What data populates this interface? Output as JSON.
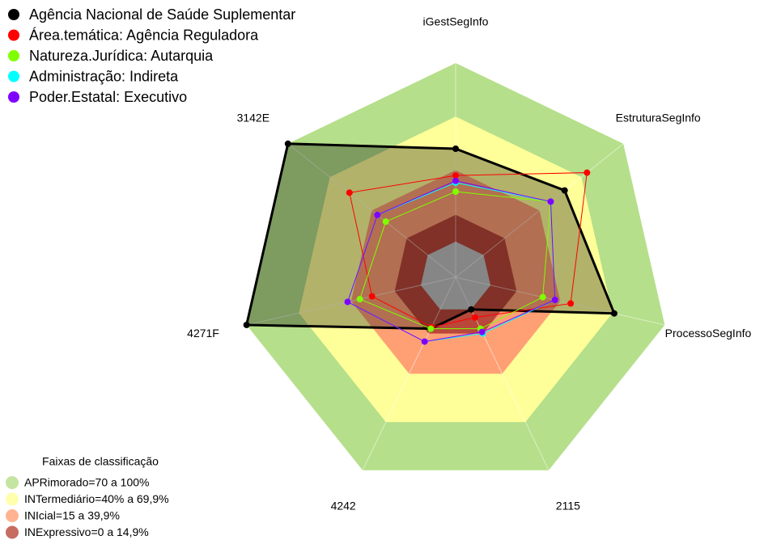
{
  "chart_data": {
    "type": "radar",
    "categories": [
      "iGestSegInfo",
      "EstruturaSegInfo",
      "ProcessoSegInfo",
      "2115",
      "4242",
      "4271F",
      "3142E"
    ],
    "ylim": [
      -20,
      100
    ],
    "series": [
      {
        "name": "Agência Nacional de Saúde Suplementar",
        "color": "#000000",
        "filled": true,
        "values": [
          52,
          58,
          71,
          0,
          12,
          100,
          100
        ]
      },
      {
        "name": "Área.temática: Agência Reguladora",
        "color": "#ff0000",
        "values": [
          37,
          74,
          46,
          5,
          11,
          28,
          56
        ]
      },
      {
        "name": "Natureza.Jurídica: Autarquia",
        "color": "#80ff00",
        "values": [
          28,
          48,
          30,
          12,
          12,
          35,
          30
        ]
      },
      {
        "name": "Administração: Indireta",
        "color": "#00ffff",
        "values": [
          33,
          48,
          37,
          15,
          20,
          42,
          36
        ]
      },
      {
        "name": "Poder.Estatal: Executivo",
        "color": "#8000ff",
        "values": [
          34,
          48,
          37,
          14,
          20,
          42,
          36
        ]
      }
    ],
    "bands_title": "Faixas de classificação",
    "bands": [
      {
        "label": "APRimorado=70 a 100%",
        "range": [
          70,
          100
        ],
        "color": "#b5df8a"
      },
      {
        "label": "INTermediário=40% a 69,9%",
        "range": [
          40,
          70
        ],
        "color": "#ffff99"
      },
      {
        "label": "INIcial=15 a 39,9%",
        "range": [
          15,
          40
        ],
        "color": "#ffa074"
      },
      {
        "label": "INExpressivo=0 a 14,9%",
        "range": [
          0,
          15
        ],
        "color": "#b9473a"
      }
    ]
  }
}
